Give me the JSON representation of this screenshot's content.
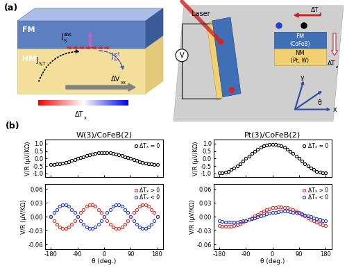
{
  "figure": {
    "panel_a": {
      "label": "(a)",
      "left": {
        "top_layer": "FM",
        "bottom_layer": "HM",
        "spin_absorbed": {
          "base": "J",
          "sub": "S",
          "sup": "abs"
        },
        "spin_thermal": {
          "base": "J",
          "sub": "S,T"
        },
        "spin_returned": {
          "base": "J",
          "sub": "S",
          "sup": "ret"
        },
        "voltage": {
          "base": "ΔV",
          "sub": "xx"
        },
        "gradient": {
          "base": "ΔT",
          "sub": "x"
        }
      },
      "right": {
        "laser": "Laser",
        "voltmeter": "V",
        "top_layer": "FM",
        "top_material": "(CoFeB)",
        "bottom_layer": "NM",
        "bottom_material": "(Pt, W)",
        "gradient_x": {
          "base": "ΔT",
          "sub": "x"
        },
        "gradient_z": {
          "base": "ΔT",
          "sub": "z"
        },
        "axes": {
          "x": "x",
          "y": "y",
          "angle": "θ"
        }
      }
    },
    "panel_b": {
      "label": "(b)"
    }
  },
  "chart_data": [
    {
      "type": "scatter",
      "title": "W(3)/CoFeB(2)",
      "ylabel": "V/R (μV/KΩ)",
      "tick_labels": "y",
      "x": [
        -180,
        -170,
        -160,
        -150,
        -140,
        -130,
        -120,
        -110,
        -100,
        -90,
        -80,
        -70,
        -60,
        -50,
        -40,
        -30,
        -20,
        -10,
        0,
        10,
        20,
        30,
        40,
        50,
        60,
        70,
        80,
        90,
        100,
        110,
        120,
        130,
        140,
        150,
        160,
        170,
        180
      ],
      "series": [
        {
          "name": "ΔTₓ = 0",
          "color": "#000000",
          "marker": "circle",
          "values": [
            -0.39,
            -0.38,
            -0.37,
            -0.34,
            -0.3,
            -0.25,
            -0.2,
            -0.13,
            -0.07,
            0.0,
            0.07,
            0.13,
            0.2,
            0.25,
            0.3,
            0.34,
            0.37,
            0.38,
            0.39,
            0.38,
            0.37,
            0.34,
            0.3,
            0.25,
            0.2,
            0.13,
            0.07,
            0.0,
            -0.07,
            -0.13,
            -0.2,
            -0.25,
            -0.3,
            -0.34,
            -0.37,
            -0.38,
            -0.39
          ]
        }
      ],
      "xlim": [
        -200,
        200
      ],
      "ylim": [
        -1.25,
        1.25
      ],
      "xticks": [
        -180,
        -90,
        0,
        90,
        180
      ],
      "yticks": [
        -1.0,
        -0.5,
        0.0,
        0.5,
        1.0
      ],
      "legend": "upper right"
    },
    {
      "type": "scatter",
      "xlabel": "θ (deg.)",
      "ylabel": "V/R (μV/KΩ)",
      "x": [
        -180,
        -170,
        -160,
        -150,
        -140,
        -130,
        -120,
        -110,
        -100,
        -90,
        -80,
        -70,
        -60,
        -50,
        -40,
        -30,
        -20,
        -10,
        0,
        10,
        20,
        30,
        40,
        50,
        60,
        70,
        80,
        90,
        100,
        110,
        120,
        130,
        140,
        150,
        160,
        170,
        180
      ],
      "series": [
        {
          "name": "ΔTₓ > 0",
          "color": "#e0302a",
          "marker": "circle",
          "values": [
            0.0,
            -0.009,
            -0.016,
            -0.022,
            -0.025,
            -0.025,
            -0.022,
            -0.016,
            -0.009,
            0.0,
            0.009,
            0.016,
            0.022,
            0.025,
            0.025,
            0.022,
            0.016,
            0.009,
            0.0,
            -0.009,
            -0.016,
            -0.022,
            -0.025,
            -0.025,
            -0.022,
            -0.016,
            -0.009,
            0.0,
            0.009,
            0.016,
            0.022,
            0.025,
            0.025,
            0.022,
            0.016,
            0.009,
            0.0
          ]
        },
        {
          "name": "ΔTₓ < 0",
          "color": "#2a3fd0",
          "marker": "circle",
          "values": [
            0.0,
            0.009,
            0.016,
            0.022,
            0.025,
            0.025,
            0.022,
            0.016,
            0.009,
            0.0,
            -0.009,
            -0.016,
            -0.022,
            -0.025,
            -0.025,
            -0.022,
            -0.016,
            -0.009,
            0.0,
            0.009,
            0.016,
            0.022,
            0.025,
            0.025,
            0.022,
            0.016,
            0.009,
            0.0,
            -0.009,
            -0.016,
            -0.022,
            -0.025,
            -0.025,
            -0.022,
            -0.016,
            -0.009,
            0.0
          ]
        }
      ],
      "xlim": [
        -200,
        200
      ],
      "ylim": [
        -0.07,
        0.07
      ],
      "xticks": [
        -180,
        -90,
        0,
        90,
        180
      ],
      "yticks": [
        -0.06,
        -0.03,
        {
          "value": 0,
          "label": "0.00"
        },
        0.03,
        0.06
      ],
      "legend": "upper right"
    },
    {
      "type": "scatter",
      "title": "Pt(3)/CoFeB(2)",
      "ylabel": "V/R (μV/KΩ)",
      "tick_labels": "y",
      "x": [
        -180,
        -170,
        -160,
        -150,
        -140,
        -130,
        -120,
        -110,
        -100,
        -90,
        -80,
        -70,
        -60,
        -50,
        -40,
        -30,
        -20,
        -10,
        0,
        10,
        20,
        30,
        40,
        50,
        60,
        70,
        80,
        90,
        100,
        110,
        120,
        130,
        140,
        150,
        160,
        170,
        180
      ],
      "series": [
        {
          "name": "ΔTₓ = 0",
          "color": "#000000",
          "marker": "circle",
          "values": [
            -0.97,
            -0.96,
            -0.91,
            -0.84,
            -0.74,
            -0.62,
            -0.49,
            -0.33,
            -0.17,
            0.0,
            0.17,
            0.33,
            0.49,
            0.62,
            0.74,
            0.84,
            0.91,
            0.96,
            0.97,
            0.96,
            0.91,
            0.84,
            0.74,
            0.62,
            0.49,
            0.33,
            0.17,
            0.0,
            -0.17,
            -0.33,
            -0.49,
            -0.62,
            -0.74,
            -0.84,
            -0.91,
            -0.96,
            -0.97
          ]
        }
      ],
      "xlim": [
        -200,
        200
      ],
      "ylim": [
        -1.25,
        1.25
      ],
      "xticks": [
        -180,
        -90,
        0,
        90,
        180
      ],
      "yticks": [
        -1.0,
        -0.5,
        0.0,
        0.5,
        1.0
      ],
      "legend": "upper right"
    },
    {
      "type": "scatter",
      "xlabel": "θ (deg.)",
      "ylabel": "V/R (μV/KΩ)",
      "x": [
        -180,
        -170,
        -160,
        -150,
        -140,
        -130,
        -120,
        -110,
        -100,
        -90,
        -80,
        -70,
        -60,
        -50,
        -40,
        -30,
        -20,
        -10,
        0,
        10,
        20,
        30,
        40,
        50,
        60,
        70,
        80,
        90,
        100,
        110,
        120,
        130,
        140,
        150,
        160,
        170,
        180
      ],
      "series": [
        {
          "name": "ΔTₓ > 0",
          "color": "#e0302a",
          "marker": "circle",
          "values": [
            -0.019,
            -0.02,
            -0.021,
            -0.021,
            -0.02,
            -0.019,
            -0.017,
            -0.015,
            -0.012,
            -0.009,
            -0.005,
            -0.002,
            0.002,
            0.005,
            0.009,
            0.012,
            0.015,
            0.017,
            0.019,
            0.02,
            0.021,
            0.021,
            0.02,
            0.019,
            0.017,
            0.015,
            0.012,
            0.009,
            0.005,
            0.002,
            -0.002,
            -0.005,
            -0.009,
            -0.012,
            -0.015,
            -0.017,
            -0.019
          ]
        },
        {
          "name": "ΔTₓ < 0",
          "color": "#2a3fd0",
          "marker": "circle",
          "values": [
            -0.009,
            -0.01,
            -0.011,
            -0.012,
            -0.012,
            -0.012,
            -0.011,
            -0.01,
            -0.009,
            -0.008,
            -0.006,
            -0.004,
            -0.002,
            0.0,
            0.002,
            0.004,
            0.006,
            0.008,
            0.009,
            0.01,
            0.011,
            0.012,
            0.012,
            0.012,
            0.011,
            0.01,
            0.009,
            0.008,
            0.006,
            0.004,
            0.002,
            0.0,
            -0.002,
            -0.004,
            -0.006,
            -0.008,
            -0.009
          ]
        }
      ],
      "xlim": [
        -200,
        200
      ],
      "ylim": [
        -0.07,
        0.07
      ],
      "xticks": [
        -180,
        -90,
        0,
        90,
        180
      ],
      "yticks": [
        -0.06,
        -0.03,
        {
          "value": 0,
          "label": "0.00"
        },
        0.03,
        0.06
      ],
      "legend": "upper right"
    }
  ]
}
